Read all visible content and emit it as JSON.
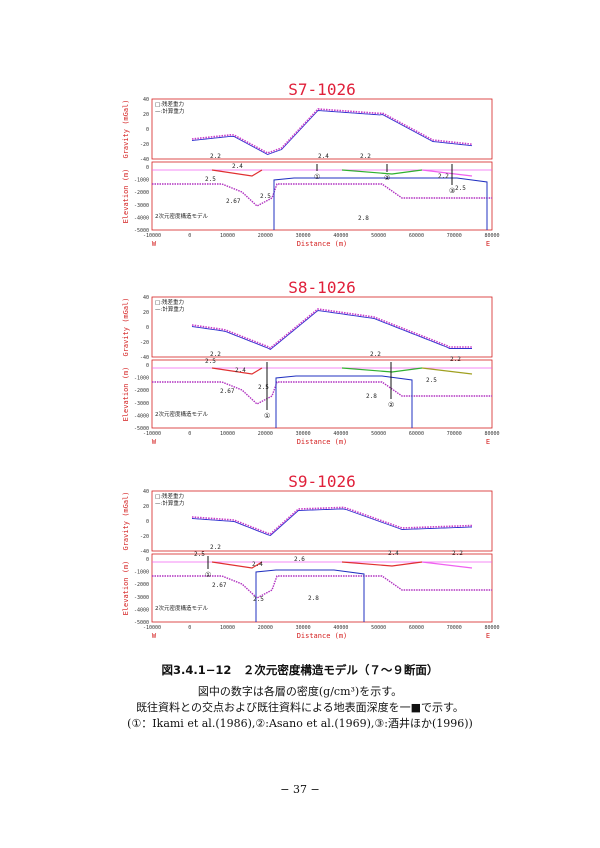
{
  "panels": [
    {
      "title": "S7-1026",
      "gravity_ylabel": "Gravity (mGal)",
      "elev_ylabel": "Elevation (m)",
      "xlabel": "Distance (m)",
      "legend_obs": "□:残差重力",
      "legend_calc": "—:計算重力",
      "model_label": "2次元密度構造モデル",
      "west": "W",
      "east": "E",
      "gravity_yticks": [
        "40",
        "20",
        "0",
        "-20",
        "-40"
      ],
      "elev_yticks": [
        "0",
        "-1000",
        "-2000",
        "-3000",
        "-4000",
        "-5000"
      ],
      "xticks": [
        "-10000",
        "0",
        "10000",
        "20000",
        "30000",
        "40000",
        "50000",
        "60000",
        "70000",
        "80000"
      ],
      "densities": [
        "2.2",
        "2.4",
        "2.4",
        "2.2",
        "2.5",
        "2.67",
        "2.5",
        "2.8",
        "2.2",
        "2.5"
      ],
      "markers": [
        "①",
        "②",
        "③"
      ]
    },
    {
      "title": "S8-1026",
      "gravity_ylabel": "Gravity (mGal)",
      "elev_ylabel": "Elevation (m)",
      "xlabel": "Distance (m)",
      "legend_obs": "□:残差重力",
      "legend_calc": "—:計算重力",
      "model_label": "2次元密度構造モデル",
      "west": "W",
      "east": "E",
      "gravity_yticks": [
        "40",
        "20",
        "0",
        "-20",
        "-40"
      ],
      "elev_yticks": [
        "0",
        "-1000",
        "-2000",
        "-3000",
        "-4000",
        "-5000"
      ],
      "xticks": [
        "-10000",
        "0",
        "10000",
        "20000",
        "30000",
        "40000",
        "50000",
        "60000",
        "70000",
        "80000"
      ],
      "densities": [
        "2.2",
        "2.5",
        "2.4",
        "2.67",
        "2.5",
        "2.2",
        "2.8",
        "2.5",
        "2.2"
      ],
      "markers": [
        "①",
        "②"
      ]
    },
    {
      "title": "S9-1026",
      "gravity_ylabel": "Gravity (mGal)",
      "elev_ylabel": "Elevation (m)",
      "xlabel": "Distance (m)",
      "legend_obs": "□:残差重力",
      "legend_calc": "—:計算重力",
      "model_label": "2次元密度構造モデル",
      "west": "W",
      "east": "E",
      "gravity_yticks": [
        "40",
        "20",
        "0",
        "-20",
        "-40"
      ],
      "elev_yticks": [
        "0",
        "-1000",
        "-2000",
        "-3000",
        "-4000",
        "-5000"
      ],
      "xticks": [
        "-10000",
        "0",
        "10000",
        "20000",
        "30000",
        "40000",
        "50000",
        "60000",
        "70000",
        "80000"
      ],
      "densities": [
        "2.2",
        "2.5",
        "2.4",
        "2.6",
        "2.4",
        "2.2",
        "2.67",
        "2.5",
        "2.8"
      ],
      "markers": [
        "①"
      ]
    }
  ],
  "caption": {
    "line1": "図3.4.1−12　２次元密度構造モデル（７〜９断面）",
    "line2": "図中の数字は各層の密度(g/cm³)を示す。",
    "line3": "既往資料との交点および既往資料による地表面深度を一■で示す。",
    "line4": "(①：Ikami et al.(1986),②:Asano et al.(1969),③:酒井ほか(1996))"
  },
  "page_number": "− 37 −",
  "colors": {
    "title": "#e0203a",
    "observed": "#c83cc8",
    "calculated": "#3030d0",
    "basement": "#2030c0",
    "layer_purple": "#b030c0",
    "layer_red": "#e03030",
    "layer_green": "#30b030",
    "layer_olive": "#a0a020",
    "layer_pink": "#f060f0"
  }
}
